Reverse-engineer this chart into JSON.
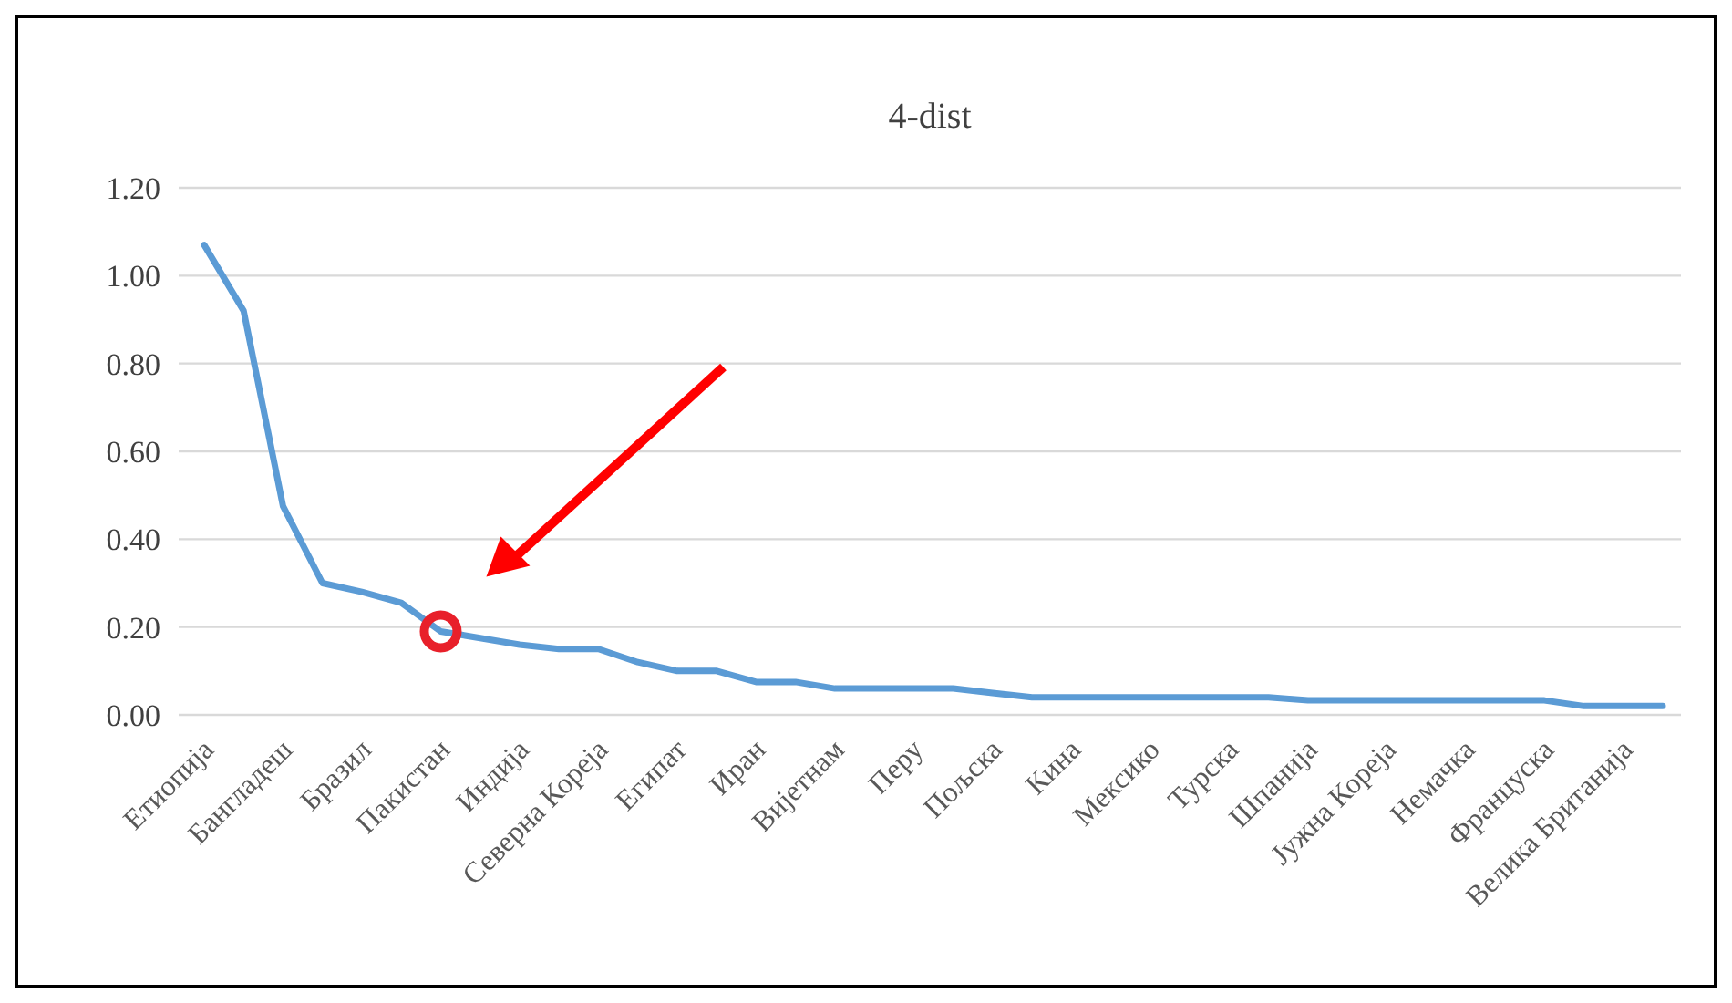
{
  "chart_data": {
    "type": "line",
    "title": "4-dist",
    "categories": [
      "Етиопија",
      null,
      "Бангладеш",
      null,
      "Бразил",
      null,
      "Пакистан",
      null,
      "Индија",
      null,
      "Северна Кореја",
      null,
      "Египат",
      null,
      "Иран",
      null,
      "Вијетнам",
      null,
      "Перу",
      null,
      "Пољска",
      null,
      "Кина",
      null,
      "Мексико",
      null,
      "Турска",
      null,
      "Шпанија",
      null,
      "Јужна Кореја",
      null,
      "Немачка",
      null,
      "Француска",
      null,
      "Велика Британија",
      null
    ],
    "series": [
      {
        "color": "#5b9bd5",
        "values": [
          1.07,
          0.92,
          0.475,
          0.3,
          0.28,
          0.255,
          0.19,
          0.175,
          0.16,
          0.15,
          0.15,
          0.12,
          0.1,
          0.1,
          0.075,
          0.075,
          0.06,
          0.06,
          0.06,
          0.06,
          0.05,
          0.04,
          0.04,
          0.04,
          0.04,
          0.04,
          0.04,
          0.04,
          0.033,
          0.033,
          0.033,
          0.033,
          0.033,
          0.033,
          0.033,
          0.02,
          0.02,
          0.02
        ]
      }
    ],
    "ylim": [
      0,
      1.2
    ],
    "yticks": [
      {
        "value": 0,
        "label": "0.00"
      },
      {
        "value": 0.2,
        "label": "0.20"
      },
      {
        "value": 0.4,
        "label": "0.40"
      },
      {
        "value": 0.6,
        "label": "0.60"
      },
      {
        "value": 0.8,
        "label": "0.80"
      },
      {
        "value": 1,
        "label": "1.00"
      },
      {
        "value": 1.2,
        "label": "1.20"
      }
    ],
    "grid": "y",
    "marker": "none",
    "line_style": "solid"
  }
}
